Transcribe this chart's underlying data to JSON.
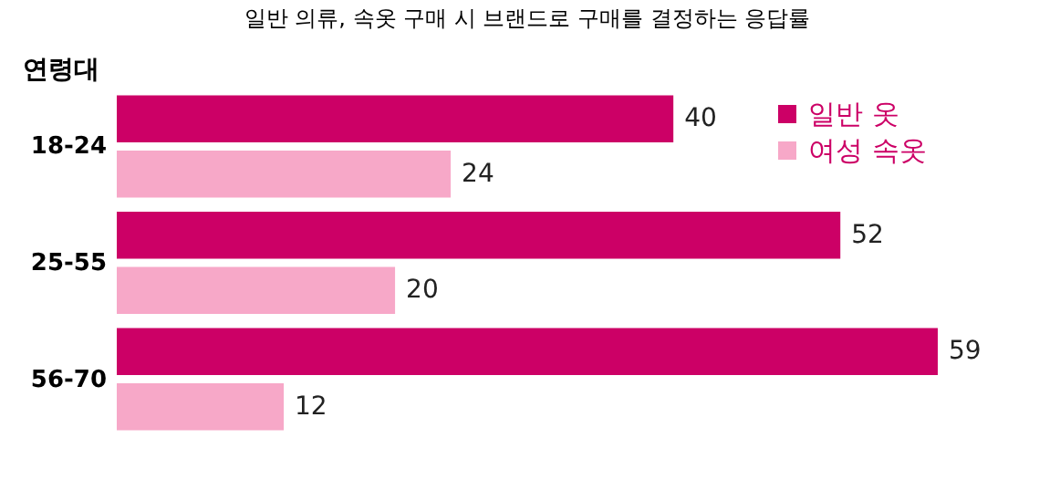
{
  "chart_data": {
    "type": "bar",
    "orientation": "horizontal",
    "title": "일반 의류, 속옷 구매 시 브랜드로 구매를 결정하는 응답률",
    "ylabel": "연령대",
    "categories": [
      "18-24",
      "25-55",
      "56-70"
    ],
    "series": [
      {
        "name": "일반 옷",
        "color": "#cc0066",
        "values": [
          40,
          52,
          59
        ]
      },
      {
        "name": "여성 속옷",
        "color": "#f7a8c8",
        "values": [
          24,
          20,
          12
        ]
      }
    ],
    "data_labels": true,
    "legend": "top right",
    "tick_labels": "y"
  }
}
